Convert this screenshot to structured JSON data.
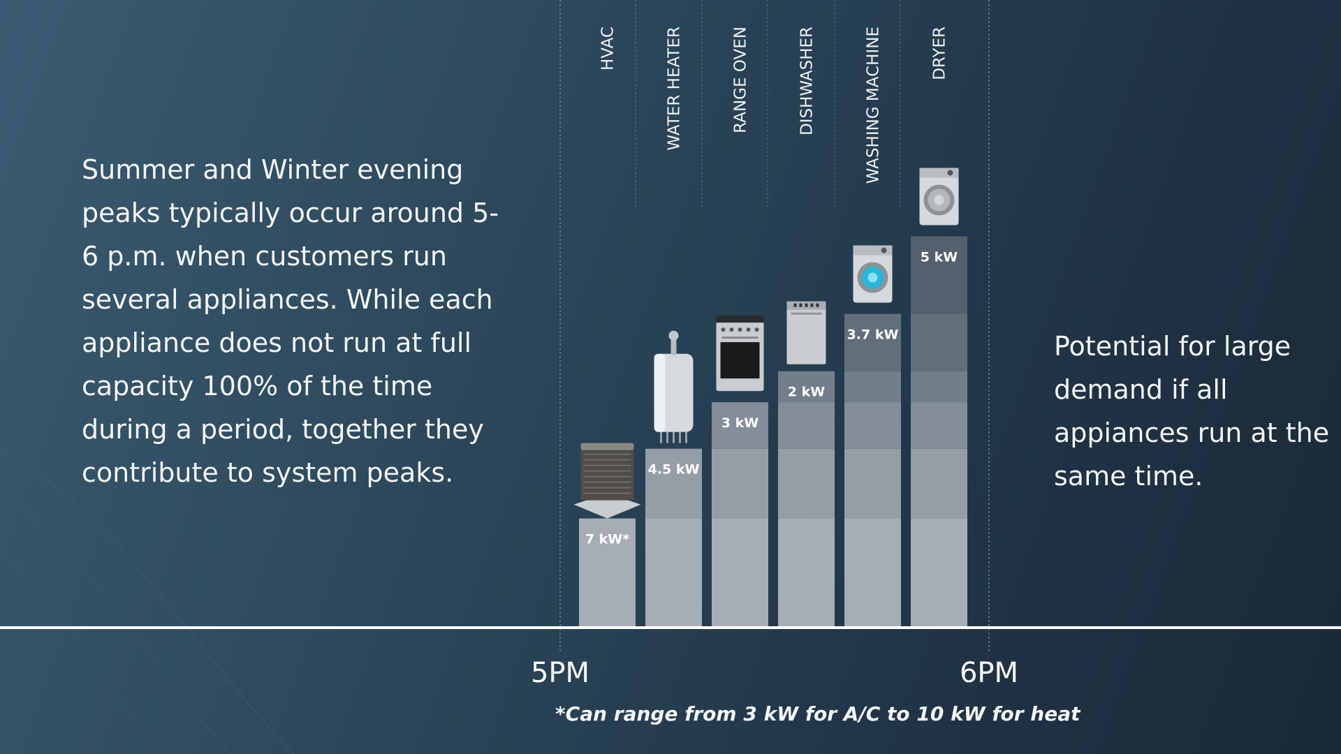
{
  "left_text": "Summer and Winter evening peaks typically occur around 5-6 p.m. when customers run several appliances. While each appliance does not run at full capacity 100% of the time during a period, together they contribute to system peaks.",
  "right_text": "Potential for large demand if all appiances run at the same time.",
  "footnote": "*Can range from 3 kW for A/C to 10 kW for heat",
  "chart_data": {
    "type": "bar",
    "stacked": true,
    "cumulative": true,
    "categories": [
      "HVAC",
      "WATER HEATER",
      "RANGE OVEN",
      "DISHWASHER",
      "WASHING MACHINE",
      "DRYER"
    ],
    "values": [
      7,
      4.5,
      3,
      2,
      3.7,
      5
    ],
    "value_labels": [
      "7 kW*",
      "4.5 kW",
      "3 kW",
      "2 kW",
      "3.7 kW",
      "5 kW"
    ],
    "unit": "kW",
    "x_ticks": [
      "5PM",
      "6PM"
    ],
    "segment_colors": [
      "#a6adb4",
      "#959ea6",
      "#838e98",
      "#727e89",
      "#626f7b",
      "#53606d"
    ],
    "icons": [
      "ac-unit-icon",
      "water-heater-icon",
      "range-oven-icon",
      "dishwasher-icon",
      "washing-machine-icon",
      "dryer-icon"
    ]
  }
}
